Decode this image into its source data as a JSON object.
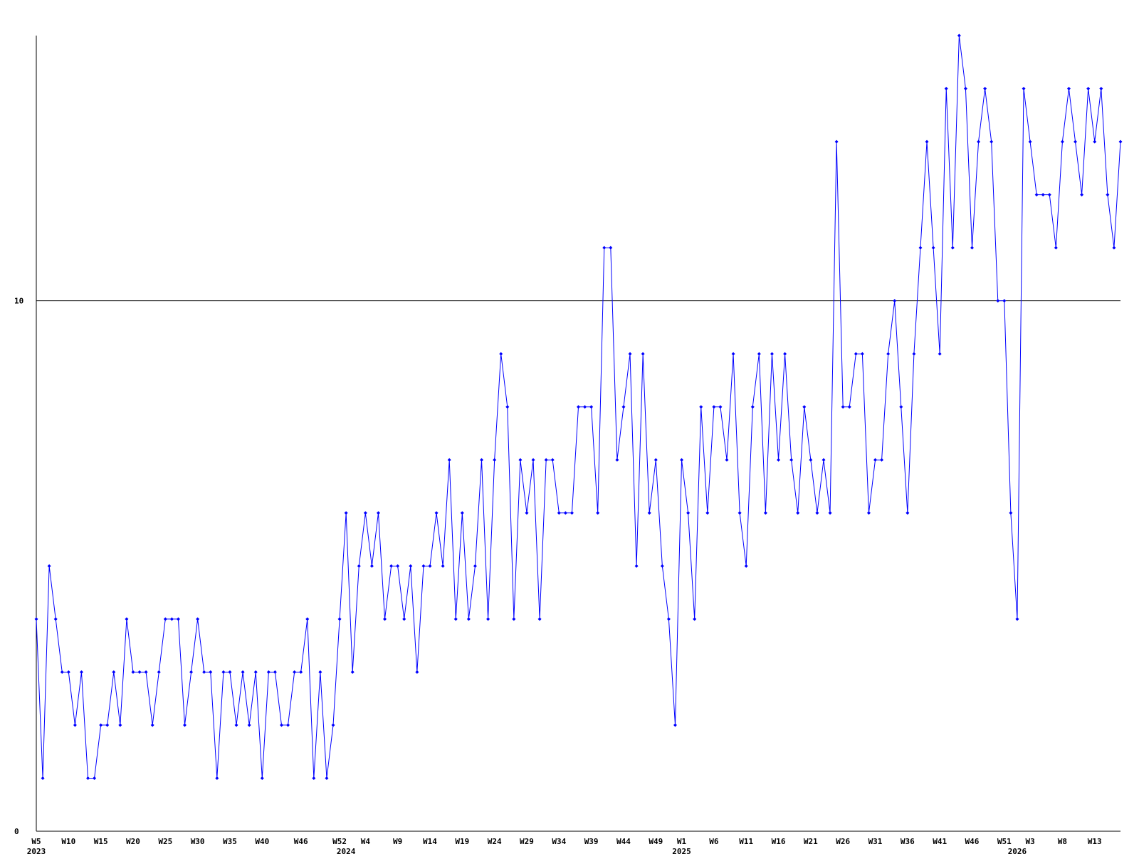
{
  "chart_data": {
    "type": "line",
    "categories": [
      "W5",
      null,
      null,
      null,
      null,
      "W10",
      null,
      null,
      null,
      null,
      "W15",
      null,
      null,
      null,
      null,
      "W20",
      null,
      null,
      null,
      null,
      "W25",
      null,
      null,
      null,
      null,
      "W30",
      null,
      null,
      null,
      null,
      "W35",
      null,
      null,
      null,
      null,
      "W40",
      null,
      null,
      null,
      null,
      null,
      "W46",
      null,
      null,
      null,
      null,
      null,
      "W52",
      null,
      null,
      null,
      "W4",
      null,
      null,
      null,
      null,
      "W9",
      null,
      null,
      null,
      null,
      "W14",
      null,
      null,
      null,
      null,
      "W19",
      null,
      null,
      null,
      null,
      "W24",
      null,
      null,
      null,
      null,
      "W29",
      null,
      null,
      null,
      null,
      "W34",
      null,
      null,
      null,
      null,
      "W39",
      null,
      null,
      null,
      null,
      "W44",
      null,
      null,
      null,
      null,
      "W49",
      null,
      null,
      null,
      "W1",
      null,
      null,
      null,
      null,
      "W6",
      null,
      null,
      null,
      null,
      "W11",
      null,
      null,
      null,
      null,
      "W16",
      null,
      null,
      null,
      null,
      "W21",
      null,
      null,
      null,
      null,
      "W26",
      null,
      null,
      null,
      null,
      "W31",
      null,
      null,
      null,
      null,
      "W36",
      null,
      null,
      null,
      null,
      "W41",
      null,
      null,
      null,
      null,
      "W46",
      null,
      null,
      null,
      null,
      "W51",
      null,
      null,
      null,
      "W3",
      null,
      null,
      null,
      null,
      "W8",
      null,
      null,
      null,
      null,
      "W13",
      null,
      null,
      null,
      null
    ],
    "years": [
      "2023",
      null,
      null,
      null,
      null,
      null,
      null,
      null,
      null,
      null,
      null,
      null,
      null,
      null,
      null,
      null,
      null,
      null,
      null,
      null,
      null,
      null,
      null,
      null,
      null,
      null,
      null,
      null,
      null,
      null,
      null,
      null,
      null,
      null,
      null,
      null,
      null,
      null,
      null,
      null,
      null,
      null,
      null,
      null,
      null,
      null,
      null,
      null,
      "2024",
      null,
      null,
      null,
      null,
      null,
      null,
      null,
      null,
      null,
      null,
      null,
      null,
      null,
      null,
      null,
      null,
      null,
      null,
      null,
      null,
      null,
      null,
      null,
      null,
      null,
      null,
      null,
      null,
      null,
      null,
      null,
      null,
      null,
      null,
      null,
      null,
      null,
      null,
      null,
      null,
      null,
      null,
      null,
      null,
      null,
      null,
      null,
      null,
      null,
      null,
      null,
      "2025",
      null,
      null,
      null,
      null,
      null,
      null,
      null,
      null,
      null,
      null,
      null,
      null,
      null,
      null,
      null,
      null,
      null,
      null,
      null,
      null,
      null,
      null,
      null,
      null,
      null,
      null,
      null,
      null,
      null,
      null,
      null,
      null,
      null,
      null,
      null,
      null,
      null,
      null,
      null,
      null,
      null,
      null,
      null,
      null,
      null,
      null,
      null,
      null,
      null,
      null,
      null,
      "2026",
      null,
      null,
      null,
      null,
      null,
      null,
      null,
      null,
      null,
      null,
      null,
      null,
      null,
      null,
      null,
      null
    ],
    "series": [
      {
        "color": "#0000ff",
        "values": [
          4,
          1,
          5,
          4,
          3,
          3,
          2,
          3,
          1,
          1,
          2,
          2,
          3,
          2,
          4,
          3,
          3,
          3,
          2,
          3,
          4,
          4,
          4,
          2,
          3,
          4,
          3,
          3,
          1,
          3,
          3,
          2,
          3,
          2,
          3,
          1,
          3,
          3,
          2,
          2,
          3,
          3,
          4,
          1,
          3,
          1,
          2,
          4,
          6,
          3,
          5,
          6,
          5,
          6,
          4,
          5,
          5,
          4,
          5,
          3,
          5,
          5,
          6,
          5,
          7,
          4,
          6,
          4,
          5,
          7,
          4,
          7,
          9,
          8,
          4,
          7,
          6,
          7,
          4,
          7,
          7,
          6,
          6,
          6,
          8,
          8,
          8,
          6,
          11,
          11,
          7,
          8,
          9,
          5,
          9,
          6,
          7,
          5,
          4,
          2,
          7,
          6,
          4,
          8,
          6,
          8,
          8,
          7,
          9,
          6,
          5,
          8,
          9,
          6,
          9,
          7,
          9,
          7,
          6,
          8,
          7,
          6,
          7,
          6,
          13,
          8,
          8,
          9,
          9,
          6,
          7,
          7,
          9,
          10,
          8,
          6,
          9,
          11,
          13,
          11,
          9,
          14,
          11,
          15,
          14,
          11,
          13,
          14,
          13,
          10,
          10,
          6,
          4,
          14,
          13,
          12,
          12,
          12,
          11,
          13,
          14,
          13,
          12,
          14,
          13,
          14,
          12,
          11,
          13
        ]
      }
    ],
    "ylim": [
      0,
      15
    ],
    "yticks": [
      0,
      10
    ],
    "grid": true
  }
}
